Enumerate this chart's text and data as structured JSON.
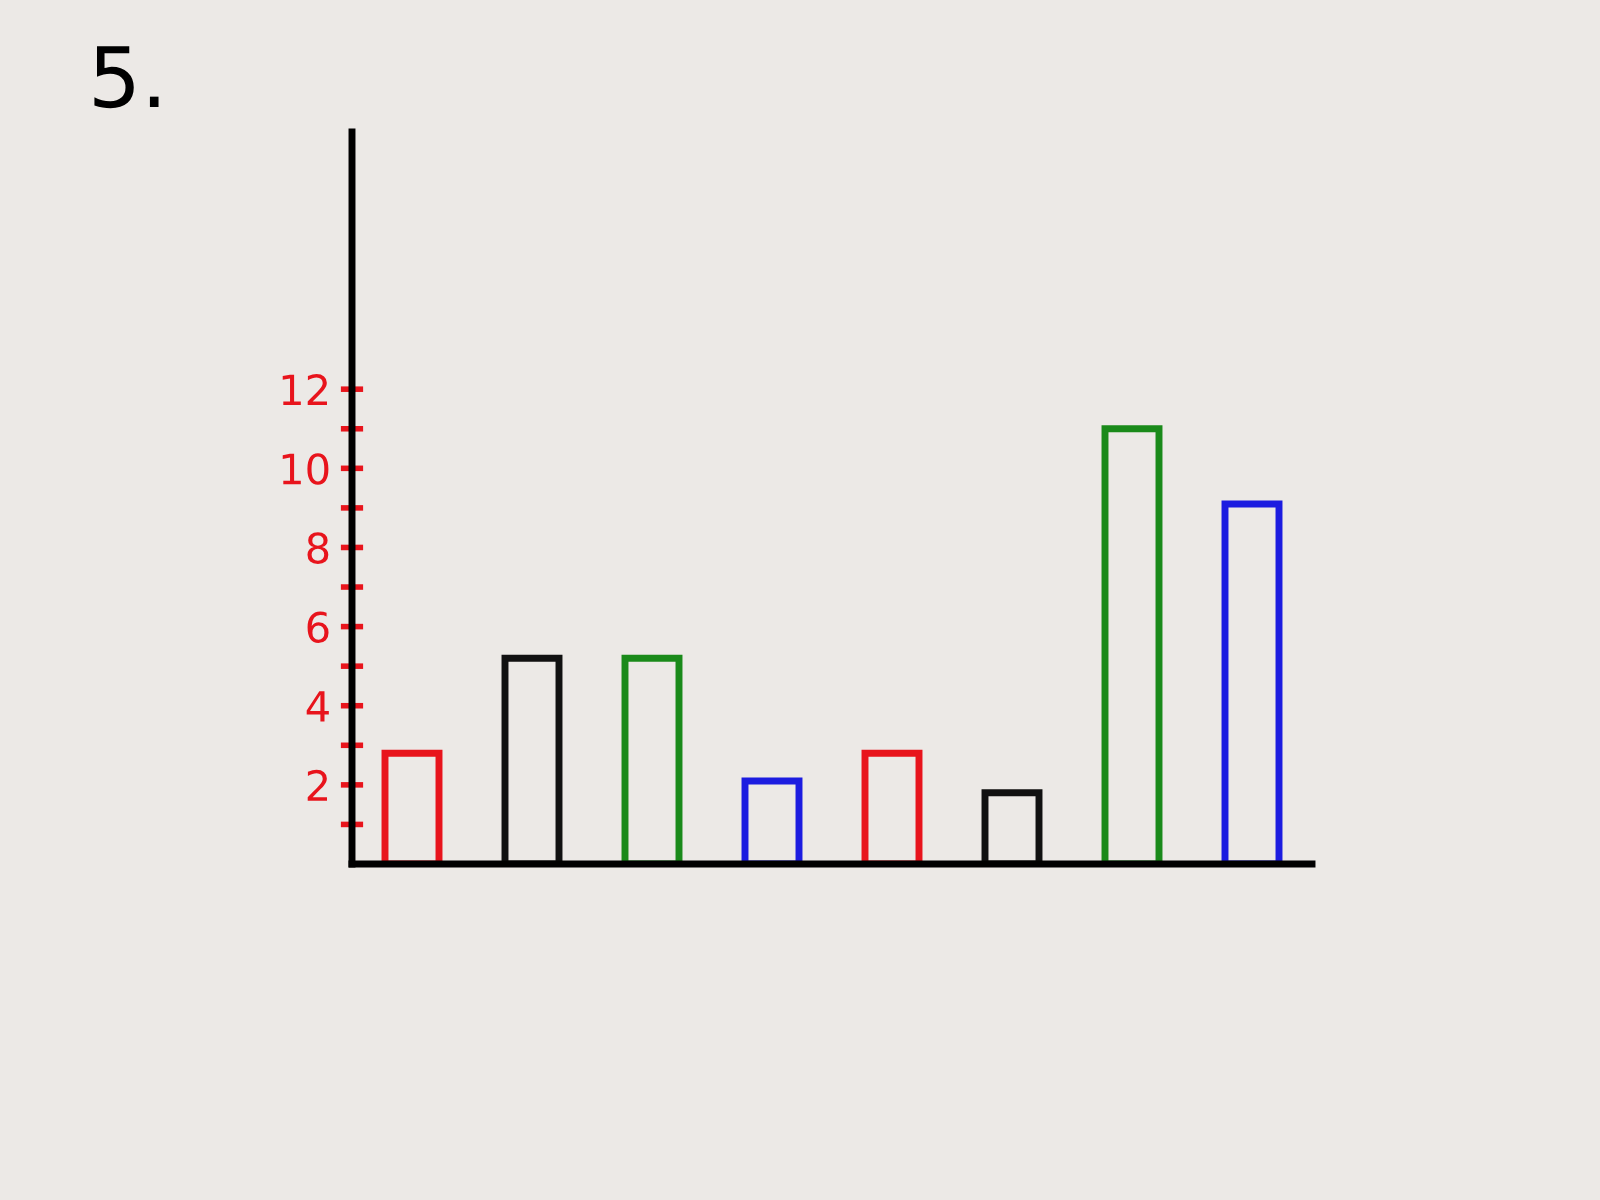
{
  "chart_data": {
    "type": "bar",
    "title": "5.",
    "categories": [
      null,
      null,
      null,
      null,
      null,
      null,
      null,
      null
    ],
    "values": [
      2.8,
      5.2,
      5.2,
      2.1,
      2.8,
      1.8,
      11,
      9.1
    ],
    "colors": [
      "#e8141c",
      "#111111",
      "#1a8a1a",
      "#1c1ce0",
      "#e8141c",
      "#111111",
      "#1a8a1a",
      "#1c1ce0"
    ],
    "ylim": [
      0,
      18.5
    ],
    "yticks": [
      {
        "value": 1,
        "label": null
      },
      2,
      {
        "value": 3,
        "label": null
      },
      4,
      {
        "value": 5,
        "label": null
      },
      6,
      {
        "value": 7,
        "label": null
      },
      8,
      {
        "value": 9,
        "label": null
      },
      10,
      {
        "value": 11,
        "label": null
      },
      12
    ],
    "grid": false
  }
}
